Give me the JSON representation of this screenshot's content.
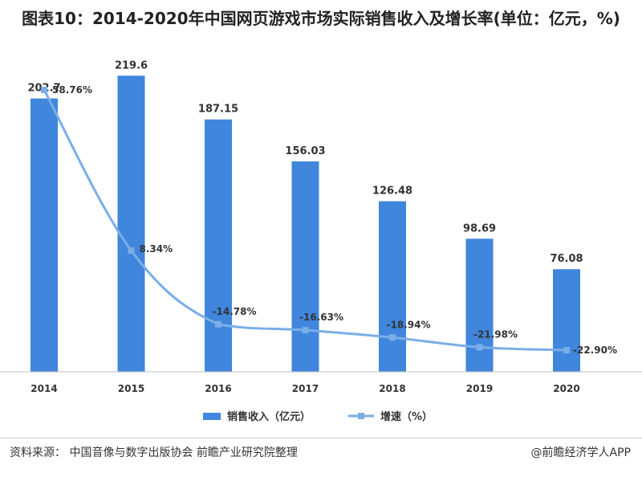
{
  "chart_data": {
    "type": "bar",
    "title": "图表10：2014-2020年中国网页游戏市场实际销售收入及增长率(单位：亿元，%)",
    "categories": [
      "2014",
      "2015",
      "2016",
      "2017",
      "2018",
      "2019",
      "2020"
    ],
    "series": [
      {
        "name": "销售收入（亿元）",
        "type": "bar",
        "values": [
          202.7,
          219.6,
          187.15,
          156.03,
          126.48,
          98.69,
          76.08
        ],
        "labels": [
          "202.7",
          "219.6",
          "187.15",
          "156.03",
          "126.48",
          "98.69",
          "76.08"
        ],
        "color": "#3F86DC"
      },
      {
        "name": "增速（%）",
        "type": "line",
        "values": [
          58.76,
          8.34,
          -14.78,
          -16.63,
          -18.94,
          -21.98,
          -22.9
        ],
        "labels": [
          "58.76%",
          "8.34%",
          "-14.78%",
          "-16.63%",
          "-18.94%",
          "-21.98%",
          "-22.90%"
        ],
        "color": "#7AAEE6",
        "smooth": true
      }
    ],
    "ylim_bar": [
      0,
      240
    ],
    "ylim_line": [
      -40,
      75
    ],
    "legend": "bottom-center",
    "grid": false
  },
  "footer": {
    "source": "资料来源：  中国音像与数字出版协会 前瞻产业研究院整理",
    "credit": "@前瞻经济学人APP"
  }
}
